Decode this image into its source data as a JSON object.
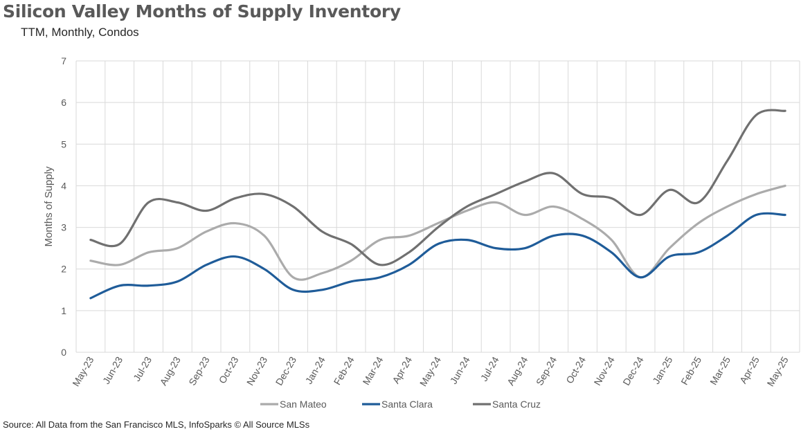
{
  "chart_data": {
    "type": "line",
    "title": "Silicon Valley Months of Supply Inventory",
    "subtitle": "TTM, Monthly, Condos",
    "xlabel": "",
    "ylabel": "Months of Supply",
    "ylim": [
      0,
      7
    ],
    "yticks": [
      0,
      1,
      2,
      3,
      4,
      5,
      6,
      7
    ],
    "grid": true,
    "legend": "bottom",
    "categories": [
      "May-23",
      "Jun-23",
      "Jul-23",
      "Aug-23",
      "Sep-23",
      "Oct-23",
      "Nov-23",
      "Dec-23",
      "Jan-24",
      "Feb-24",
      "Mar-24",
      "Apr-24",
      "May-24",
      "Jun-24",
      "Jul-24",
      "Aug-24",
      "Sep-24",
      "Oct-24",
      "Nov-24",
      "Dec-24",
      "Jan-25",
      "Feb-25",
      "Mar-25",
      "Apr-25",
      "May-25"
    ],
    "series": [
      {
        "name": "San Mateo",
        "color": "#ababab",
        "values": [
          2.2,
          2.1,
          2.4,
          2.5,
          2.9,
          3.1,
          2.8,
          1.8,
          1.9,
          2.2,
          2.7,
          2.8,
          3.1,
          3.4,
          3.6,
          3.3,
          3.5,
          3.2,
          2.7,
          1.8,
          2.5,
          3.1,
          3.5,
          3.8,
          4.0
        ]
      },
      {
        "name": "Santa Clara",
        "color": "#1f5c99",
        "values": [
          1.3,
          1.6,
          1.6,
          1.7,
          2.1,
          2.3,
          2.0,
          1.5,
          1.5,
          1.7,
          1.8,
          2.1,
          2.6,
          2.7,
          2.5,
          2.5,
          2.8,
          2.8,
          2.4,
          1.8,
          2.3,
          2.4,
          2.8,
          3.3,
          3.3
        ]
      },
      {
        "name": "Santa Cruz",
        "color": "#707070",
        "values": [
          2.7,
          2.6,
          3.6,
          3.6,
          3.4,
          3.7,
          3.8,
          3.5,
          2.9,
          2.6,
          2.1,
          2.4,
          3.0,
          3.5,
          3.8,
          4.1,
          4.3,
          3.8,
          3.7,
          3.3,
          3.9,
          3.6,
          4.6,
          5.7,
          5.8
        ]
      }
    ]
  },
  "source": "Source: All Data from the San Francisco MLS, InfoSparks © All Source MLSs",
  "colors": {
    "gridline": "#d9d9d9",
    "axis_text": "#595959"
  }
}
